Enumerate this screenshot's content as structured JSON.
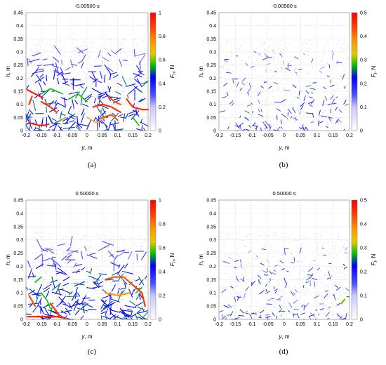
{
  "chart_data": [
    {
      "type": "scatter",
      "panel": "(a)",
      "title": "-0.00500 s",
      "xlabel": "y, m",
      "ylabel": "h, m",
      "colorbar_label": "F_n, N",
      "xlim": [
        -0.2,
        0.2
      ],
      "ylim": [
        0,
        0.45
      ],
      "clim": [
        0,
        1
      ],
      "xticks": [
        "-0.2",
        "-0.15",
        "-0.1",
        "-0.05",
        "0",
        "0.05",
        "0.1",
        "0.15",
        "0.2"
      ],
      "yticks": [
        "0",
        "0.05",
        "0.1",
        "0.15",
        "0.2",
        "0.25",
        "0.3",
        "0.35",
        "0.4",
        "0.45"
      ],
      "cticks": [
        "0",
        "0.2",
        "0.4",
        "0.6",
        "0.8",
        "1"
      ],
      "colors": {
        "low": "#ffffff",
        "mid_low": "#0000ff",
        "mid": "#00c000",
        "mid_high": "#ff9900",
        "high": "#ff0000"
      },
      "network_top": 0.3,
      "network_density": "dense",
      "strong_force_lines": [
        {
          "y": [
            -0.195,
            -0.17,
            -0.145
          ],
          "h": [
            0.155,
            0.14,
            0.125
          ],
          "f": 0.95
        },
        {
          "y": [
            -0.19,
            -0.16,
            -0.14,
            -0.125
          ],
          "h": [
            0.03,
            0.02,
            0.02,
            0.025
          ],
          "f": 0.95
        },
        {
          "y": [
            -0.15,
            -0.12,
            -0.1
          ],
          "h": [
            0.11,
            0.09,
            0.07
          ],
          "f": 0.9
        },
        {
          "y": [
            0.02,
            0.05,
            0.08,
            0.11
          ],
          "h": [
            0.09,
            0.1,
            0.09,
            0.07
          ],
          "f": 0.9
        },
        {
          "y": [
            0.05,
            0.08,
            0.1
          ],
          "h": [
            0.05,
            0.06,
            0.04
          ],
          "f": 0.85
        },
        {
          "y": [
            0.13,
            0.15,
            0.18,
            0.2
          ],
          "h": [
            0.12,
            0.09,
            0.08,
            0.08
          ],
          "f": 0.9
        },
        {
          "y": [
            0.07,
            0.09,
            0.11
          ],
          "h": [
            0.13,
            0.11,
            0.1
          ],
          "f": 0.85
        },
        {
          "y": [
            -0.18,
            -0.19
          ],
          "h": [
            0.13,
            0.1
          ],
          "f": 0.9
        }
      ],
      "medium_force_lines": [
        {
          "y": [
            -0.15,
            -0.12,
            -0.08
          ],
          "h": [
            0.14,
            0.16,
            0.14
          ],
          "f": 0.55
        },
        {
          "y": [
            -0.06,
            -0.03,
            0.0
          ],
          "h": [
            0.12,
            0.14,
            0.11
          ],
          "f": 0.55
        },
        {
          "y": [
            0.0,
            0.03,
            0.06
          ],
          "h": [
            0.05,
            0.03,
            0.05
          ],
          "f": 0.7
        },
        {
          "y": [
            -0.1,
            -0.07
          ],
          "h": [
            0.03,
            0.05
          ],
          "f": 0.6
        },
        {
          "y": [
            0.15,
            0.17
          ],
          "h": [
            0.05,
            0.02
          ],
          "f": 0.55
        }
      ]
    },
    {
      "type": "scatter",
      "panel": "(b)",
      "title": "-0.00500 s",
      "xlabel": "y, m",
      "ylabel": "h, m",
      "colorbar_label": "F_t, N",
      "xlim": [
        -0.2,
        0.2
      ],
      "ylim": [
        0,
        0.45
      ],
      "clim": [
        0,
        0.5
      ],
      "xticks": [
        "-0.2",
        "-0.15",
        "-0.1",
        "-0.05",
        "0",
        "0.05",
        "0.1",
        "0.15",
        "0.2"
      ],
      "yticks": [
        "0",
        "0.05",
        "0.1",
        "0.15",
        "0.2",
        "0.25",
        "0.3",
        "0.35",
        "0.4",
        "0.45"
      ],
      "cticks": [
        "0",
        "0.1",
        "0.2",
        "0.3",
        "0.4",
        "0.5"
      ],
      "colors": {
        "low": "#ffffff",
        "mid_low": "#0000ff",
        "mid": "#00c000",
        "mid_high": "#ff9900",
        "high": "#ff0000"
      },
      "network_top": 0.3,
      "network_density": "sparse",
      "strong_force_lines": [],
      "medium_force_lines": [
        {
          "y": [
            -0.12,
            -0.11
          ],
          "h": [
            0.05,
            0.04
          ],
          "f": 0.3
        }
      ]
    },
    {
      "type": "scatter",
      "panel": "(c)",
      "title": "0.50000 s",
      "xlabel": "y, m",
      "ylabel": "h, m",
      "colorbar_label": "F_n, N",
      "xlim": [
        -0.2,
        0.2
      ],
      "ylim": [
        0,
        0.45
      ],
      "clim": [
        0,
        1
      ],
      "xticks": [
        "-0.2",
        "-0.15",
        "-0.1",
        "-0.05",
        "0",
        "0.05",
        "0.1",
        "0.15",
        "0.2"
      ],
      "yticks": [
        "0",
        "0.05",
        "0.1",
        "0.15",
        "0.2",
        "0.25",
        "0.3",
        "0.35",
        "0.4",
        "0.45"
      ],
      "cticks": [
        "0",
        "0.2",
        "0.4",
        "0.6",
        "0.8",
        "1"
      ],
      "colors": {
        "low": "#ffffff",
        "mid_low": "#0000ff",
        "mid": "#00c000",
        "mid_high": "#ff9900",
        "high": "#ff0000"
      },
      "network_top": 0.28,
      "network_density": "dense",
      "strong_force_lines": [
        {
          "y": [
            -0.195,
            -0.15,
            -0.1,
            -0.07
          ],
          "h": [
            0.01,
            0.01,
            0.01,
            0.005
          ],
          "f": 0.95
        },
        {
          "y": [
            -0.12,
            -0.1,
            -0.09
          ],
          "h": [
            0.06,
            0.03,
            0.01
          ],
          "f": 0.9
        },
        {
          "y": [
            0.06,
            0.09,
            0.12,
            0.15
          ],
          "h": [
            0.15,
            0.16,
            0.16,
            0.13
          ],
          "f": 0.85
        },
        {
          "y": [
            0.15,
            0.18,
            0.19
          ],
          "h": [
            0.13,
            0.1,
            0.05
          ],
          "f": 0.9
        },
        {
          "y": [
            0.06,
            0.1,
            0.14
          ],
          "h": [
            0.1,
            0.09,
            0.1
          ],
          "f": 0.75
        },
        {
          "y": [
            -0.19,
            -0.17
          ],
          "h": [
            0.09,
            0.05
          ],
          "f": 0.85
        }
      ],
      "medium_force_lines": [
        {
          "y": [
            -0.15,
            -0.13,
            -0.12
          ],
          "h": [
            0.1,
            0.07,
            0.04
          ],
          "f": 0.55
        },
        {
          "y": [
            -0.17,
            -0.15
          ],
          "h": [
            0.14,
            0.16
          ],
          "f": 0.55
        },
        {
          "y": [
            0.16,
            0.18
          ],
          "h": [
            0.1,
            0.12
          ],
          "f": 0.55
        }
      ]
    },
    {
      "type": "scatter",
      "panel": "(d)",
      "title": "0.50000 s",
      "xlabel": "y, m",
      "ylabel": "h, m",
      "colorbar_label": "F_t, N",
      "xlim": [
        -0.2,
        0.2
      ],
      "ylim": [
        0,
        0.45
      ],
      "clim": [
        0,
        0.5
      ],
      "xticks": [
        "-0.2",
        "-0.15",
        "-0.1",
        "-0.05",
        "0",
        "0.05",
        "0.1",
        "0.15",
        "0.2"
      ],
      "yticks": [
        "0",
        "0.05",
        "0.1",
        "0.15",
        "0.2",
        "0.25",
        "0.3",
        "0.35",
        "0.4",
        "0.45"
      ],
      "cticks": [
        "0",
        "0.1",
        "0.2",
        "0.3",
        "0.4",
        "0.5"
      ],
      "colors": {
        "low": "#ffffff",
        "mid_low": "#0000ff",
        "mid": "#00c000",
        "mid_high": "#ff9900",
        "high": "#ff0000"
      },
      "network_top": 0.28,
      "network_density": "sparse",
      "strong_force_lines": [
        {
          "y": [
            0.175,
            0.185
          ],
          "h": [
            0.06,
            0.075
          ],
          "f": 0.6
        }
      ],
      "medium_force_lines": []
    }
  ]
}
